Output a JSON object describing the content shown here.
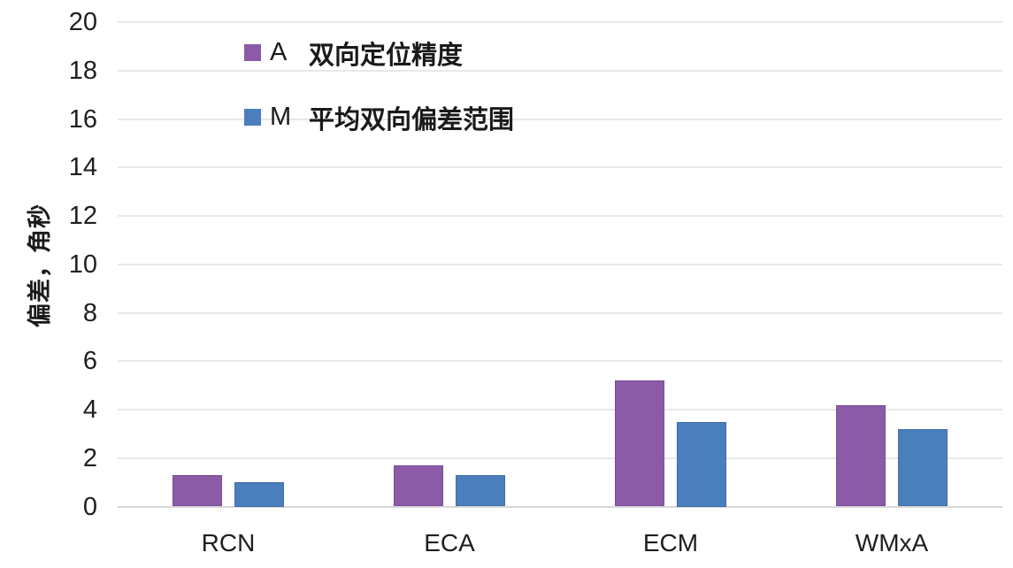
{
  "chart_data": {
    "type": "bar",
    "title": "",
    "xlabel": "",
    "ylabel": "偏差，角秒",
    "ylim": [
      0,
      20
    ],
    "yticks": [
      0,
      2,
      4,
      6,
      8,
      10,
      12,
      14,
      16,
      18,
      20
    ],
    "grid": "horizontal",
    "legend_position": "top-left-inside",
    "categories": [
      "RCN",
      "ECA",
      "ECM",
      "WMxA"
    ],
    "series": [
      {
        "key": "A",
        "name": "双向定位精度",
        "color": "#8b5ba8",
        "edge": "#7a4a97",
        "values": [
          1.3,
          1.7,
          5.2,
          4.2
        ]
      },
      {
        "key": "M",
        "name": "平均双向偏差范围",
        "color": "#4b7ebc",
        "edge": "#3e6dab",
        "values": [
          1.0,
          1.3,
          3.5,
          3.2
        ]
      }
    ]
  },
  "colors": {
    "gridline": "#e8e8e8",
    "baseline": "#d8d8d8",
    "text": "#1f1f1f"
  }
}
